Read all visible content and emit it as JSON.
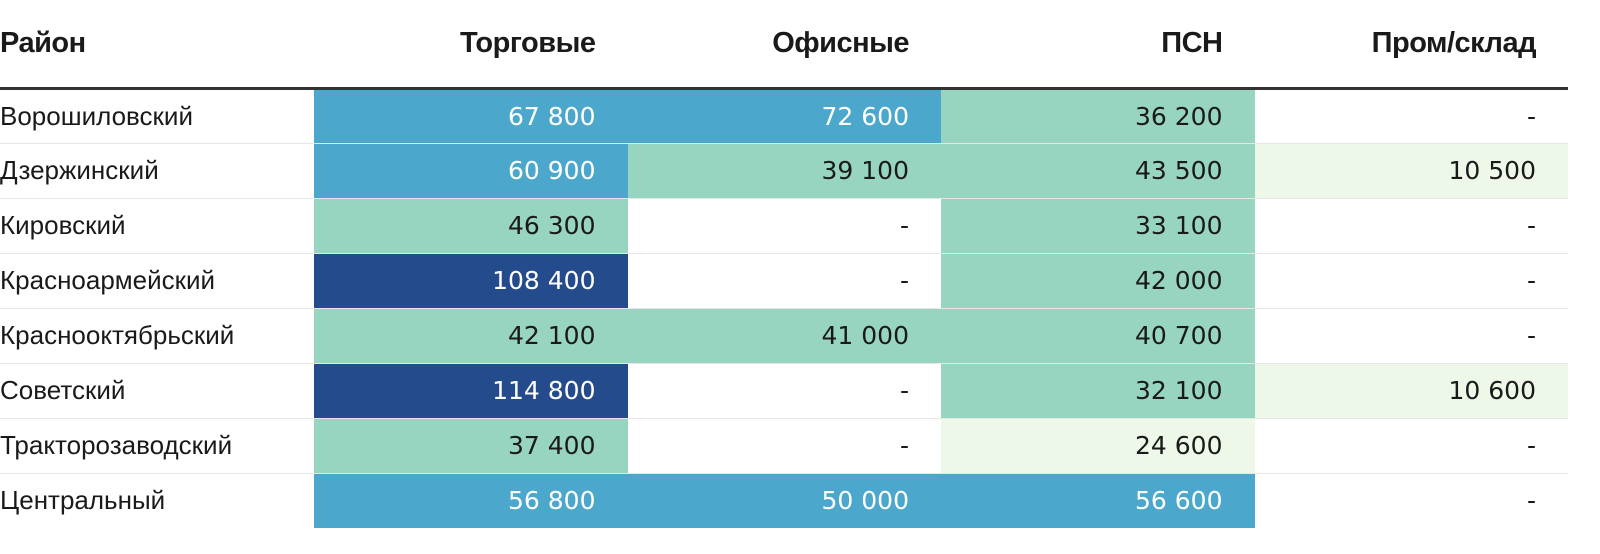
{
  "chart_data": {
    "type": "table",
    "columns": [
      "Район",
      "Торговые",
      "Офисные",
      "ПСН",
      "Пром/склад"
    ],
    "rows": [
      {
        "district": "Ворошиловский",
        "values": [
          "67 800",
          "72 600",
          "36 200",
          "-"
        ]
      },
      {
        "district": "Дзержинский",
        "values": [
          "60 900",
          "39 100",
          "43 500",
          "10 500"
        ]
      },
      {
        "district": "Кировский",
        "values": [
          "46 300",
          "-",
          "33 100",
          "-"
        ]
      },
      {
        "district": "Красноармейский",
        "values": [
          "108 400",
          "-",
          "42 000",
          "-"
        ]
      },
      {
        "district": "Краснооктябрьский",
        "values": [
          "42 100",
          "41 000",
          "40 700",
          "-"
        ]
      },
      {
        "district": "Советский",
        "values": [
          "114 800",
          "-",
          "32 100",
          "10 600"
        ]
      },
      {
        "district": "Тракторозаводский",
        "values": [
          "37 400",
          "-",
          "24 600",
          "-"
        ]
      },
      {
        "district": "Центральный",
        "values": [
          "56 800",
          "50 000",
          "56 600",
          "-"
        ]
      }
    ],
    "color_scale": {
      "empty": "#ffffff",
      "low": "#eef8e8",
      "mid": "#98d5c0",
      "high": "#4ba8cc",
      "max": "#244b8c"
    },
    "text_colors": {
      "dark": "#1a1a1a",
      "light": "#ffffff"
    }
  }
}
